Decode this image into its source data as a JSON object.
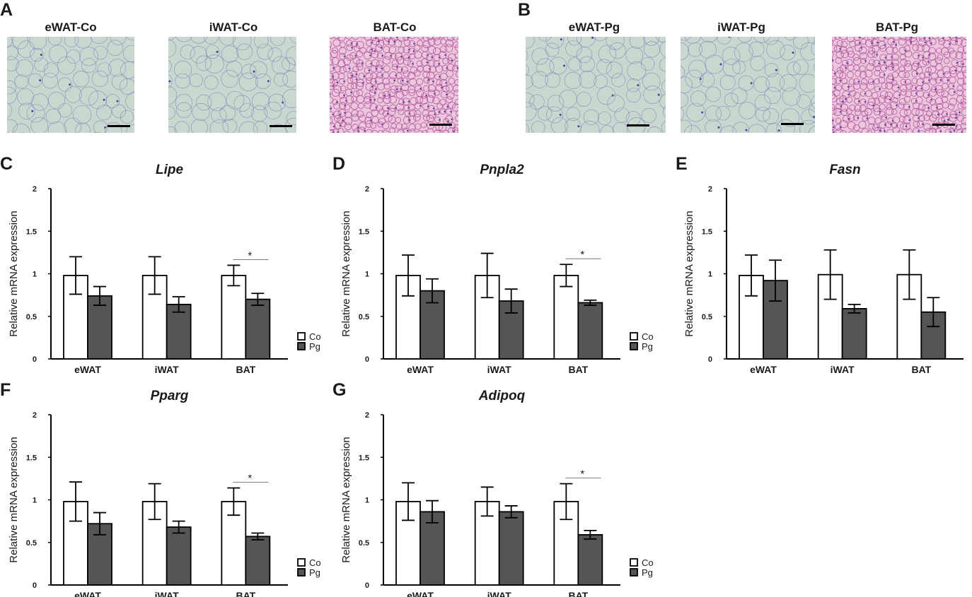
{
  "panels": {
    "A": "A",
    "B": "B",
    "C": "C",
    "D": "D",
    "E": "E",
    "F": "F",
    "G": "G"
  },
  "micrographs": [
    {
      "title": "eWAT-Co",
      "stain": "wat",
      "seed": 3
    },
    {
      "title": "iWAT-Co",
      "stain": "wat",
      "seed": 7
    },
    {
      "title": "BAT-Co",
      "stain": "bat",
      "seed": 11
    },
    {
      "title": "eWAT-Pg",
      "stain": "wat",
      "seed": 13
    },
    {
      "title": "iWAT-Pg",
      "stain": "wat",
      "seed": 17
    },
    {
      "title": "BAT-Pg",
      "stain": "bat",
      "seed": 19
    }
  ],
  "colors": {
    "wat_bg": "#c9d8cf",
    "wat_line": "#7d7fb8",
    "bat_bg": "#ecc6dc",
    "bat_line": "#b0539a",
    "bar_co": "#ffffff",
    "bar_pg": "#555555"
  },
  "chart_data": [
    {
      "type": "bar",
      "panel": "C",
      "title": "Lipe",
      "ylabel": "Relative mRNA expression",
      "categories": [
        "eWAT",
        "iWAT",
        "BAT"
      ],
      "yticks": [
        "0",
        "0.5",
        "1",
        "1.5",
        "2"
      ],
      "ylim": [
        0,
        2
      ],
      "series": [
        {
          "name": "Co",
          "values": [
            0.98,
            0.98,
            0.98
          ],
          "errors": [
            0.22,
            0.22,
            0.12
          ]
        },
        {
          "name": "Pg",
          "values": [
            0.74,
            0.64,
            0.7
          ],
          "errors": [
            0.11,
            0.09,
            0.07
          ]
        }
      ],
      "significance": [
        {
          "category": "BAT",
          "label": "*"
        }
      ],
      "legend": [
        "Co",
        "Pg"
      ]
    },
    {
      "type": "bar",
      "panel": "D",
      "title": "Pnpla2",
      "ylabel": "Relative mRNA expression",
      "categories": [
        "eWAT",
        "iWAT",
        "BAT"
      ],
      "yticks": [
        "0",
        "0.5",
        "1",
        "1.5",
        "2"
      ],
      "ylim": [
        0,
        2
      ],
      "series": [
        {
          "name": "Co",
          "values": [
            0.98,
            0.98,
            0.98
          ],
          "errors": [
            0.24,
            0.26,
            0.13
          ]
        },
        {
          "name": "Pg",
          "values": [
            0.8,
            0.68,
            0.66
          ],
          "errors": [
            0.14,
            0.14,
            0.03
          ]
        }
      ],
      "significance": [
        {
          "category": "BAT",
          "label": "*"
        }
      ],
      "legend": [
        "Co",
        "Pg"
      ]
    },
    {
      "type": "bar",
      "panel": "E",
      "title": "Fasn",
      "ylabel": "Relative mRNA expression",
      "categories": [
        "eWAT",
        "iWAT",
        "BAT"
      ],
      "yticks": [
        "0",
        "0.5",
        "1",
        "1.5",
        "2"
      ],
      "ylim": [
        0,
        2
      ],
      "series": [
        {
          "name": "Co",
          "values": [
            0.98,
            0.99,
            0.99
          ],
          "errors": [
            0.24,
            0.29,
            0.29
          ]
        },
        {
          "name": "Pg",
          "values": [
            0.92,
            0.59,
            0.55
          ],
          "errors": [
            0.24,
            0.05,
            0.17
          ]
        }
      ],
      "significance": [],
      "legend": [
        "Co",
        "Pg"
      ]
    },
    {
      "type": "bar",
      "panel": "F",
      "title": "Pparg",
      "ylabel": "Relative mRNA expression",
      "categories": [
        "eWAT",
        "iWAT",
        "BAT"
      ],
      "yticks": [
        "0",
        "0.5",
        "1",
        "1.5",
        "2"
      ],
      "ylim": [
        0,
        2
      ],
      "series": [
        {
          "name": "Co",
          "values": [
            0.98,
            0.98,
            0.98
          ],
          "errors": [
            0.23,
            0.21,
            0.16
          ]
        },
        {
          "name": "Pg",
          "values": [
            0.72,
            0.68,
            0.57
          ],
          "errors": [
            0.13,
            0.07,
            0.04
          ]
        }
      ],
      "significance": [
        {
          "category": "BAT",
          "label": "*"
        }
      ],
      "legend": [
        "Co",
        "Pg"
      ]
    },
    {
      "type": "bar",
      "panel": "G",
      "title": "Adipoq",
      "ylabel": "Relative mRNA expression",
      "categories": [
        "eWAT",
        "iWAT",
        "BAT"
      ],
      "yticks": [
        "0",
        "0.5",
        "1",
        "1.5",
        "2"
      ],
      "ylim": [
        0,
        2
      ],
      "series": [
        {
          "name": "Co",
          "values": [
            0.98,
            0.98,
            0.98
          ],
          "errors": [
            0.22,
            0.17,
            0.21
          ]
        },
        {
          "name": "Pg",
          "values": [
            0.86,
            0.86,
            0.59
          ],
          "errors": [
            0.13,
            0.07,
            0.05
          ]
        }
      ],
      "significance": [
        {
          "category": "BAT",
          "label": "*"
        }
      ],
      "legend": [
        "Co",
        "Pg"
      ]
    }
  ]
}
